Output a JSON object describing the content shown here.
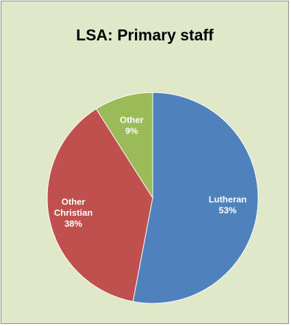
{
  "chart_data": {
    "type": "pie",
    "title": "LSA: Primary staff",
    "slices": [
      {
        "label_lines": [
          "Lutheran"
        ],
        "value": 53,
        "value_label": "53%",
        "color": "#4f81bd"
      },
      {
        "label_lines": [
          "Other",
          "Christian"
        ],
        "value": 38,
        "value_label": "38%",
        "color": "#c0504d"
      },
      {
        "label_lines": [
          "Other"
        ],
        "value": 9,
        "value_label": "9%",
        "color": "#9bbb59"
      }
    ],
    "background_color": "#dfe8c8",
    "legend": "none"
  }
}
